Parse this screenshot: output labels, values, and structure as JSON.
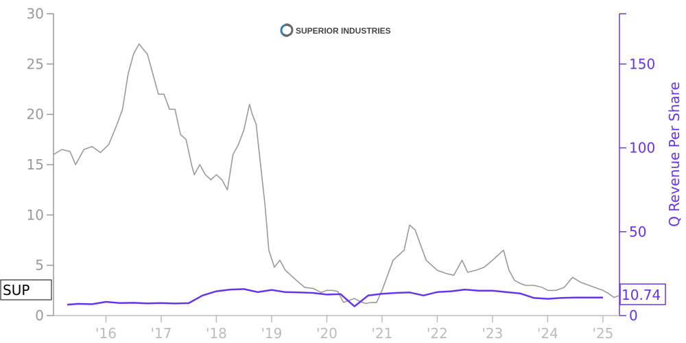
{
  "chart_data": {
    "type": "line",
    "logo_text": "SUPERIOR INDUSTRIES",
    "ticker_label": "SUP",
    "last_value_label": "10.74",
    "ylabel_right": "Q Revenue Per Share",
    "x_ticks": [
      "'16",
      "'17",
      "'18",
      "'19",
      "'20",
      "'21",
      "'22",
      "'23",
      "'24",
      "'25"
    ],
    "x_tick_years": [
      2016,
      2017,
      2018,
      2019,
      2020,
      2021,
      2022,
      2023,
      2024,
      2025
    ],
    "x_range": [
      2015.05,
      2025.3
    ],
    "y_left": {
      "ticks": [
        "0",
        "5",
        "10",
        "15",
        "20",
        "25",
        "30"
      ],
      "values": [
        0,
        5,
        10,
        15,
        20,
        25,
        30
      ],
      "lim": [
        0,
        30
      ]
    },
    "y_right": {
      "ticks": [
        "0",
        "50",
        "100",
        "150"
      ],
      "values": [
        0,
        50,
        100,
        150
      ],
      "lim": [
        0,
        180
      ]
    },
    "colors": {
      "price": "#999999",
      "revenue": "#6633ee",
      "axis_left": "#999999",
      "axis_right": "#6633ee"
    },
    "series": [
      {
        "role": "price",
        "x": [
          2015.05,
          2015.2,
          2015.35,
          2015.45,
          2015.6,
          2015.75,
          2015.9,
          2016.05,
          2016.2,
          2016.3,
          2016.4,
          2016.5,
          2016.6,
          2016.67,
          2016.75,
          2016.85,
          2016.95,
          2017.05,
          2017.15,
          2017.25,
          2017.35,
          2017.45,
          2017.55,
          2017.6,
          2017.7,
          2017.8,
          2017.9,
          2018.0,
          2018.1,
          2018.2,
          2018.3,
          2018.4,
          2018.5,
          2018.6,
          2018.65,
          2018.72,
          2018.8,
          2018.88,
          2018.95,
          2019.05,
          2019.15,
          2019.25,
          2019.35,
          2019.45,
          2019.6,
          2019.75,
          2019.9,
          2020.0,
          2020.1,
          2020.2,
          2020.3,
          2020.4,
          2020.5,
          2020.6,
          2020.7,
          2020.8,
          2020.9,
          2021.0,
          2021.1,
          2021.2,
          2021.3,
          2021.4,
          2021.5,
          2021.6,
          2021.7,
          2021.8,
          2021.9,
          2022.0,
          2022.15,
          2022.3,
          2022.45,
          2022.55,
          2022.7,
          2022.85,
          2023.0,
          2023.1,
          2023.2,
          2023.3,
          2023.4,
          2023.5,
          2023.6,
          2023.75,
          2023.9,
          2024.0,
          2024.15,
          2024.3,
          2024.45,
          2024.6,
          2024.75,
          2024.9,
          2025.0,
          2025.1,
          2025.2,
          2025.3
        ],
        "y": [
          16,
          16.5,
          16.3,
          15,
          16.5,
          16.8,
          16.2,
          17,
          19,
          20.5,
          24,
          26,
          27,
          26.5,
          26,
          24,
          22,
          22,
          20.5,
          20.5,
          18,
          17.5,
          15,
          14,
          15,
          14,
          13.5,
          14,
          13.5,
          12.5,
          16,
          17,
          18.5,
          21,
          20,
          19,
          15,
          11,
          6.5,
          4.8,
          5.5,
          4.5,
          4,
          3.5,
          2.8,
          2.7,
          2.3,
          2.5,
          2.5,
          2.4,
          1.3,
          1.5,
          1.7,
          1.4,
          1.2,
          1.3,
          1.3,
          2.5,
          4,
          5.5,
          6,
          6.5,
          9,
          8.5,
          7,
          5.5,
          5,
          4.5,
          4.2,
          4,
          5.5,
          4.3,
          4.5,
          4.8,
          5.5,
          6,
          6.5,
          4.5,
          3.5,
          3.2,
          3,
          3,
          2.8,
          2.5,
          2.5,
          2.8,
          3.8,
          3.3,
          3,
          2.7,
          2.5,
          2.2,
          1.8,
          2
        ]
      },
      {
        "role": "revenue",
        "x": [
          2015.3,
          2015.5,
          2015.75,
          2016.0,
          2016.25,
          2016.5,
          2016.75,
          2017.0,
          2017.25,
          2017.5,
          2017.75,
          2018.0,
          2018.25,
          2018.5,
          2018.75,
          2019.0,
          2019.25,
          2019.5,
          2019.75,
          2020.0,
          2020.25,
          2020.5,
          2020.75,
          2021.0,
          2021.25,
          2021.5,
          2021.75,
          2022.0,
          2022.25,
          2022.5,
          2022.75,
          2023.0,
          2023.25,
          2023.5,
          2023.75,
          2024.0,
          2024.25,
          2024.5,
          2024.75,
          2025.0
        ],
        "y": [
          6.5,
          7,
          6.8,
          8.2,
          7.5,
          7.6,
          7.3,
          7.5,
          7.2,
          7.4,
          12,
          14.5,
          15.5,
          15.8,
          14,
          15.3,
          14,
          13.8,
          13.5,
          12.5,
          12.8,
          5.5,
          12,
          13,
          13.5,
          13.8,
          12,
          14,
          14.5,
          15.5,
          14.8,
          14.8,
          14,
          13.2,
          10.5,
          10,
          10.5,
          10.7,
          10.74,
          10.74
        ]
      }
    ]
  }
}
